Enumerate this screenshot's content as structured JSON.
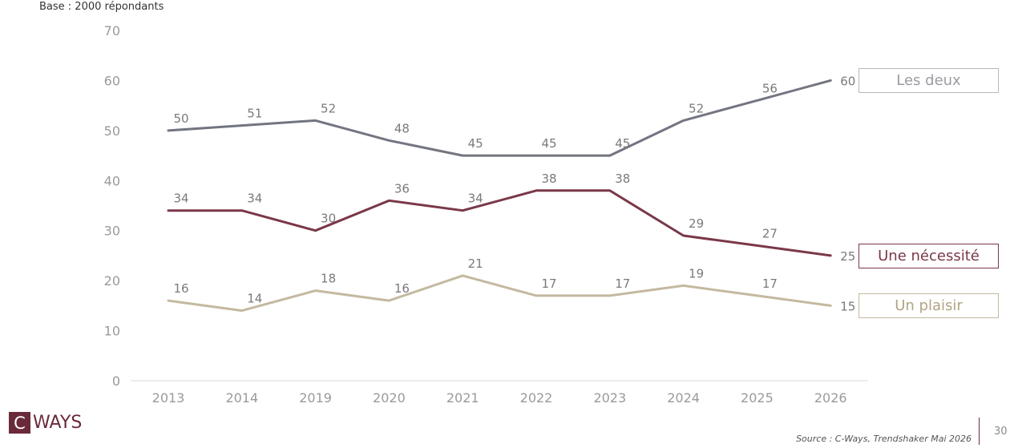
{
  "note": "Base : 2000 répondants",
  "source": "Source : C-Ways, Trendshaker Mai 2026",
  "page_number": "30",
  "logo": {
    "mark": "C",
    "text": "WAYS"
  },
  "colors": {
    "les_deux": "#737580",
    "une_necessite": "#7a3848",
    "un_plaisir": "#c4b9a0",
    "axis": "#d9d9d9",
    "tick": "#9a9a9a",
    "brand": "#6a2a3a"
  },
  "chart_data": {
    "type": "line",
    "categories": [
      "2013",
      "2014",
      "2019",
      "2020",
      "2021",
      "2022",
      "2023",
      "2024",
      "2025",
      "2026"
    ],
    "ylim": [
      0,
      70
    ],
    "yticks": [
      0,
      10,
      20,
      30,
      40,
      50,
      60,
      70
    ],
    "grid": false,
    "legend": "right",
    "series": [
      {
        "name": "Les deux",
        "values": [
          50,
          51,
          52,
          48,
          45,
          45,
          45,
          52,
          56,
          60
        ]
      },
      {
        "name": "Une nécessité",
        "values": [
          34,
          34,
          30,
          36,
          34,
          38,
          38,
          29,
          27,
          25
        ]
      },
      {
        "name": "Un plaisir",
        "values": [
          16,
          14,
          18,
          16,
          21,
          17,
          17,
          19,
          17,
          15
        ]
      }
    ]
  }
}
